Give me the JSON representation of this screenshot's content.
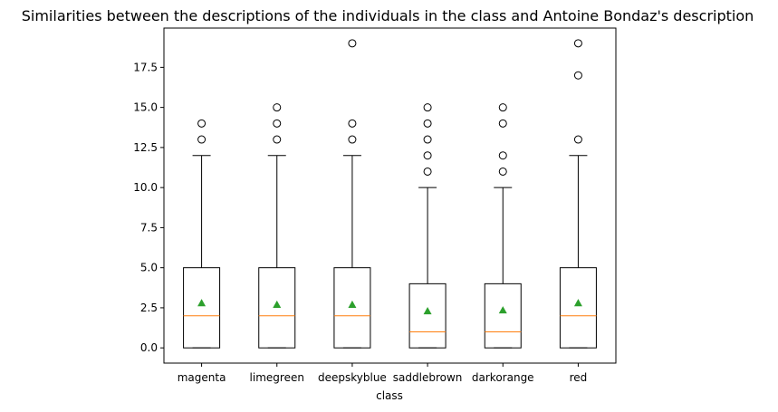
{
  "chart_data": {
    "type": "boxplot",
    "title": "Similarities between the descriptions of the individuals in the class and Antoine Bondaz's description",
    "xlabel": "class",
    "ylabel": "",
    "ylim": [
      -0.95,
      19.95
    ],
    "yticks": [
      "0.0",
      "2.5",
      "5.0",
      "7.5",
      "10.0",
      "12.5",
      "15.0",
      "17.5"
    ],
    "grid": false,
    "colors": {
      "box": "#000000",
      "median": "#ff7f0e",
      "mean": "#2ca02c",
      "flier": "#000000"
    },
    "categories": [
      "magenta",
      "limegreen",
      "deepskyblue",
      "saddlebrown",
      "darkorange",
      "red"
    ],
    "boxes": [
      {
        "name": "magenta",
        "whislo": 0,
        "q1": 0,
        "med": 2,
        "q3": 5,
        "whishi": 12,
        "mean": 2.8,
        "fliers": [
          13,
          14
        ]
      },
      {
        "name": "limegreen",
        "whislo": 0,
        "q1": 0,
        "med": 2,
        "q3": 5,
        "whishi": 12,
        "mean": 2.7,
        "fliers": [
          13,
          14,
          15
        ]
      },
      {
        "name": "deepskyblue",
        "whislo": 0,
        "q1": 0,
        "med": 2,
        "q3": 5,
        "whishi": 12,
        "mean": 2.7,
        "fliers": [
          13,
          14,
          19
        ]
      },
      {
        "name": "saddlebrown",
        "whislo": 0,
        "q1": 0,
        "med": 1,
        "q3": 4,
        "whishi": 10,
        "mean": 2.3,
        "fliers": [
          11,
          12,
          13,
          14,
          15
        ]
      },
      {
        "name": "darkorange",
        "whislo": 0,
        "q1": 0,
        "med": 1,
        "q3": 4,
        "whishi": 10,
        "mean": 2.35,
        "fliers": [
          11,
          12,
          14,
          15
        ]
      },
      {
        "name": "red",
        "whislo": 0,
        "q1": 0,
        "med": 2,
        "q3": 5,
        "whishi": 12,
        "mean": 2.8,
        "fliers": [
          13,
          17,
          19
        ]
      }
    ]
  }
}
